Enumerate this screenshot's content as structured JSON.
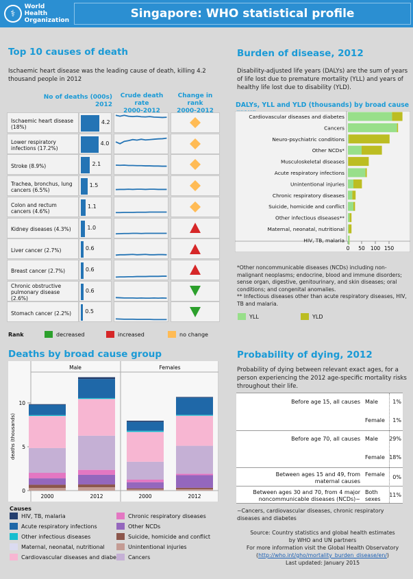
{
  "header": {
    "logo_line1": "World Health",
    "logo_line2": "Organization",
    "title": "Singapore: WHO statistical profile"
  },
  "top10": {
    "title": "Top 10 causes of death",
    "subtitle": "Ischaemic heart disease was the leading cause of death, killing 4.2 thousand people in 2012",
    "col_deaths": "No of deaths (000s)",
    "col_deaths_year": "2012",
    "col_rate": "Crude death rate",
    "col_rate_years": "2000-2012",
    "col_rank": "Change in rank",
    "col_rank_years": "2000-2012",
    "rows": [
      {
        "label": "Ischaemic heart disease (18%)",
        "deaths": 4.2,
        "deaths_label": "4.2",
        "trend": [
          0.95,
          0.9,
          0.95,
          0.9,
          0.88,
          0.9,
          0.87,
          0.86,
          0.88,
          0.85,
          0.84,
          0.83,
          0.84
        ],
        "rank_change": "no change"
      },
      {
        "label": "Lower respiratory infections (17.2%)",
        "deaths": 4.0,
        "deaths_label": "4.0",
        "trend": [
          0.65,
          0.55,
          0.68,
          0.72,
          0.78,
          0.75,
          0.8,
          0.76,
          0.78,
          0.8,
          0.82,
          0.83,
          0.86
        ],
        "rank_change": "no change"
      },
      {
        "label": "Stroke (8.9%)",
        "deaths": 2.1,
        "deaths_label": "2.1",
        "trend": [
          0.5,
          0.49,
          0.5,
          0.48,
          0.48,
          0.47,
          0.47,
          0.46,
          0.46,
          0.45,
          0.45,
          0.44,
          0.44
        ],
        "rank_change": "no change"
      },
      {
        "label": "Trachea, bronchus, lung cancers (6.5%)",
        "deaths": 1.5,
        "deaths_label": "1.5",
        "trend": [
          0.32,
          0.33,
          0.33,
          0.34,
          0.33,
          0.34,
          0.34,
          0.33,
          0.34,
          0.34,
          0.33,
          0.33,
          0.33
        ],
        "rank_change": "no change"
      },
      {
        "label": "Colon and rectum cancers (4.6%)",
        "deaths": 1.1,
        "deaths_label": "1.1",
        "trend": [
          0.22,
          0.22,
          0.23,
          0.23,
          0.23,
          0.24,
          0.24,
          0.24,
          0.25,
          0.25,
          0.25,
          0.25,
          0.25
        ],
        "rank_change": "no change"
      },
      {
        "label": "Kidney diseases (4.3%)",
        "deaths": 1.0,
        "deaths_label": "1.0",
        "trend": [
          0.22,
          0.23,
          0.24,
          0.24,
          0.25,
          0.25,
          0.24,
          0.25,
          0.25,
          0.25,
          0.25,
          0.25,
          0.25
        ],
        "rank_change": "increased"
      },
      {
        "label": "Liver cancer (2.7%)",
        "deaths": 0.6,
        "deaths_label": "0.6",
        "trend": [
          0.18,
          0.2,
          0.2,
          0.21,
          0.22,
          0.2,
          0.21,
          0.22,
          0.2,
          0.2,
          0.21,
          0.21,
          0.2
        ],
        "rank_change": "increased"
      },
      {
        "label": "Breast cancer (2.7%)",
        "deaths": 0.6,
        "deaths_label": "0.6",
        "trend": [
          0.14,
          0.15,
          0.15,
          0.16,
          0.16,
          0.17,
          0.17,
          0.17,
          0.18,
          0.18,
          0.18,
          0.19,
          0.19
        ],
        "rank_change": "increased"
      },
      {
        "label": "Chronic obstructive pulmonary disease (2.6%)",
        "deaths": 0.6,
        "deaths_label": "0.6",
        "trend": [
          0.18,
          0.17,
          0.16,
          0.16,
          0.16,
          0.15,
          0.16,
          0.15,
          0.15,
          0.16,
          0.15,
          0.16,
          0.15
        ],
        "rank_change": "decreased"
      },
      {
        "label": "Stomach cancer (2.2%)",
        "deaths": 0.5,
        "deaths_label": "0.5",
        "trend": [
          0.14,
          0.13,
          0.12,
          0.12,
          0.12,
          0.11,
          0.11,
          0.11,
          0.11,
          0.1,
          0.1,
          0.1,
          0.1
        ],
        "rank_change": "decreased"
      }
    ],
    "rank_legend": {
      "title": "Rank",
      "decreased": "decreased",
      "increased": "increased",
      "no_change": "no change"
    },
    "rank_colors": {
      "decreased": "#2ca02c",
      "increased": "#d62728",
      "no change": "#ffbb55"
    }
  },
  "burden": {
    "title": "Burden of disease, 2012",
    "description": "Disability-adjusted life years (DALYs) are the sum of years of life lost due to premature mortality (YLL) and years of healthy life lost due to disability (YLD).",
    "note1": "*Other noncommunicable diseases (NCDs) including non-malignant neoplasms; endocrine, blood and immune disorders; sense organ, digestive, genitourinary, and skin diseases; oral conditions; and congenital anomalies.",
    "note2": "** Infectious diseases other than acute respiratory diseases, HIV, TB and malaria."
  },
  "deaths": {
    "title": "Deaths by broad cause group",
    "legend_title": "Causes"
  },
  "probability": {
    "title": "Probability of dying, 2012",
    "description": "Probability of dying between relevant exact ages, for a person experiencing the 2012 age-specific mortality risks throughout their life.",
    "rows": [
      {
        "label": "Before age 15, all causes",
        "sex": "Male",
        "value": "1%"
      },
      {
        "label": "",
        "sex": "Female",
        "value": "1%"
      },
      {
        "label": "Before age 70, all causes",
        "sex": "Male",
        "value": "29%"
      },
      {
        "label": "",
        "sex": "Female",
        "value": "18%"
      },
      {
        "label": "Between ages 15 and 49, from maternal causes",
        "sex": "Female",
        "value": "0%"
      },
      {
        "label": "Between ages 30 and 70, from 4 major noncommunicable diseases (NCDs)~",
        "sex": "Both sexes",
        "value": "11%"
      }
    ],
    "footnote": "~Cancers, cardiovascular diseases, chronic respiratory diseases and diabetes"
  },
  "source": {
    "line1": "Source:  Country statistics and global health estimates",
    "line2": "by WHO and UN partners",
    "line3": "For more information visit the Global Health Observatory",
    "link": "http://who.int/gho/mortality_burden_disease/en/",
    "updated": "Last updated: January 2015"
  },
  "chart_data": [
    {
      "type": "bar",
      "orientation": "horizontal",
      "stacked": true,
      "title": "DALYs, YLL and YLD (thousands) by broad cause group",
      "categories": [
        "Cardiovascular diseases and diabetes",
        "Cancers",
        "Neuro-psychiatric conditions",
        "Other NCDs*",
        "Musculoskeletal diseases",
        "Acute respiratory infections",
        "Unintentional injuries",
        "Chronic respiratory diseases",
        "Suicide, homicide and conflict",
        "Other infectious diseases**",
        "Maternal, neonatal, nutritional",
        "HIV, TB, malaria"
      ],
      "series": [
        {
          "name": "YLL",
          "color": "#98df8a",
          "values": [
            161,
            179,
            3,
            50,
            1,
            64,
            20,
            16,
            20,
            6,
            3,
            5
          ]
        },
        {
          "name": "YLD",
          "color": "#bcbd22",
          "values": [
            38,
            4,
            149,
            74,
            75,
            5,
            31,
            12,
            6,
            7,
            10,
            1
          ]
        }
      ],
      "xticks": [
        0,
        50,
        100,
        150
      ],
      "xlim": [
        0,
        200
      ]
    },
    {
      "type": "bar",
      "stacked": true,
      "title": "Deaths by broad cause group",
      "ylabel": "deaths (thousands)",
      "yticks": [
        0,
        5,
        10
      ],
      "ylim": [
        0,
        13.5
      ],
      "facets": [
        "Male",
        "Females"
      ],
      "categories": [
        "2000",
        "2012"
      ],
      "series": [
        {
          "name": "Unintentional injuries",
          "color": "#c49c94",
          "values": {
            "Male": [
              0.3,
              0.39
            ],
            "Females": [
              0.13,
              0.16
            ]
          }
        },
        {
          "name": "Suicide, homicide and conflict",
          "color": "#8c564b",
          "values": {
            "Male": [
              0.37,
              0.31
            ],
            "Females": [
              0.13,
              0.16
            ]
          }
        },
        {
          "name": "Other NCDs",
          "color": "#9467bd",
          "values": {
            "Male": [
              0.73,
              1.1
            ],
            "Females": [
              0.7,
              1.44
            ]
          }
        },
        {
          "name": "Chronic respiratory diseases",
          "color": "#e377c2",
          "values": {
            "Male": [
              0.63,
              0.57
            ],
            "Females": [
              0.29,
              0.16
            ]
          }
        },
        {
          "name": "Cancers",
          "color": "#c5b0d5",
          "values": {
            "Male": [
              2.82,
              3.89
            ],
            "Females": [
              2.04,
              3.19
            ]
          }
        },
        {
          "name": "Cardiovascular diseases and diabetes",
          "color": "#f7b6d2",
          "values": {
            "Male": [
              3.65,
              4.18
            ],
            "Females": [
              3.39,
              3.42
            ]
          }
        },
        {
          "name": "Maternal, neonatal, nutritional",
          "color": "#dbdbf0",
          "values": {
            "Male": [
              0.01,
              0.01
            ],
            "Females": [
              0.01,
              0.01
            ]
          }
        },
        {
          "name": "Other infectious diseases",
          "color": "#17becf",
          "values": {
            "Male": [
              0.1,
              0.1
            ],
            "Females": [
              0.13,
              0.1
            ]
          }
        },
        {
          "name": "Acute respiratory infections",
          "color": "#1f68a8",
          "values": {
            "Male": [
              1.17,
              2.17
            ],
            "Females": [
              1.02,
              1.96
            ]
          }
        },
        {
          "name": "HIV, TB, malaria",
          "color": "#253f6e",
          "values": {
            "Male": [
              0.08,
              0.21
            ],
            "Females": [
              0.13,
              0.08
            ]
          }
        }
      ],
      "legend_order": [
        "HIV, TB, malaria",
        "Chronic respiratory diseases",
        "Acute respiratory infections",
        "Other NCDs",
        "Other infectious diseases",
        "Suicide, homicide and conflict",
        "Maternal, neonatal, nutritional",
        "Unintentional injuries",
        "Cardiovascular diseases and diabetes",
        "Cancers"
      ]
    }
  ]
}
